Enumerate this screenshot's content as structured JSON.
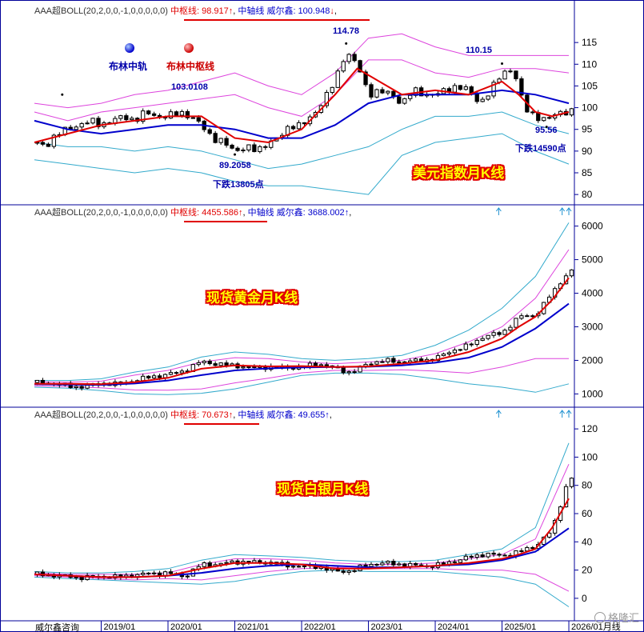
{
  "footer": {
    "source": "威尔鑫咨询"
  },
  "watermark": {
    "text": "格隆汇"
  },
  "x_axis_labels": [
    "2019/01",
    "2020/01",
    "2021/01",
    "2022/01",
    "2023/01",
    "2024/01",
    "2025/01",
    "2026/01"
  ],
  "x_axis_trailing": "月线",
  "legend": {
    "mid": "布林中轨",
    "pivot": "布林中枢线"
  },
  "colors": {
    "candle": "#000000",
    "pivot": "#e00000",
    "mid": "#0000cc",
    "outer_band": "#33aacc",
    "inner_band": "#dd44dd",
    "axis": "#000099"
  },
  "panels": [
    {
      "id": "usd",
      "title": "美元指数月K线",
      "header": {
        "indicator": "AAA超BOLL(20,2,0,0,-1,0,0,0,0,0)",
        "pivot": "中枢线: 98.917",
        "pivot_arrow": "↑",
        "mid": "中轴线 威尔鑫: 100.948",
        "mid_arrow": "↓"
      },
      "annotations": [
        {
          "text": "114.78"
        },
        {
          "text": "110.15"
        },
        {
          "text": "103.0108"
        },
        {
          "text": "89.2058"
        },
        {
          "text": "下跌13805点"
        },
        {
          "text": "95.56"
        },
        {
          "text": "下跌14590点"
        }
      ],
      "top_arrows": 0
    },
    {
      "id": "gold",
      "title": "现货黄金月K线",
      "header": {
        "indicator": "AAA超BOLL(20,2,0,0,-1,0,0,0,0,0)",
        "pivot": "中枢线: 4455.586",
        "pivot_arrow": "↑",
        "mid": "中轴线 威尔鑫: 3688.002",
        "mid_arrow": "↑"
      },
      "annotations": [],
      "top_arrows": 3
    },
    {
      "id": "silver",
      "title": "现货白银月K线",
      "header": {
        "indicator": "AAA超BOLL(20,2,0,0,-1,0,0,0,0,0)",
        "pivot": "中枢线: 70.673",
        "pivot_arrow": "↑",
        "mid": "中轴线 威尔鑫: 49.655",
        "mid_arrow": "↑"
      },
      "annotations": [],
      "top_arrows": 3
    }
  ],
  "chart_data": [
    {
      "type": "line",
      "title": "美元指数月K线",
      "x_range": [
        "2018-01",
        "2026-02"
      ],
      "ylim": [
        78,
        120
      ],
      "yticks": [
        80,
        85,
        90,
        95,
        100,
        105,
        110,
        115
      ],
      "grid": false,
      "key_points": [
        {
          "x": "2018-06",
          "y": 103.0108
        },
        {
          "x": "2021-01",
          "y": 89.2058
        },
        {
          "x": "2022-09",
          "y": 114.78
        },
        {
          "x": "2025-01",
          "y": 110.15
        },
        {
          "x": "2025-09",
          "y": 95.56
        }
      ],
      "series": [
        {
          "name": "布林中枢线",
          "x": [
            "2018-01",
            "2018-07",
            "2019-01",
            "2019-07",
            "2020-01",
            "2020-07",
            "2021-01",
            "2021-07",
            "2022-01",
            "2022-07",
            "2022-11",
            "2023-03",
            "2023-07",
            "2024-01",
            "2024-07",
            "2025-01",
            "2025-04",
            "2025-07",
            "2025-10",
            "2026-01"
          ],
          "values": [
            92,
            94,
            96,
            97,
            98,
            98,
            93,
            92,
            95,
            103,
            109,
            106,
            103,
            104,
            103,
            106,
            103,
            99,
            98,
            99
          ]
        },
        {
          "name": "布林中轨",
          "x": [
            "2018-01",
            "2018-07",
            "2019-01",
            "2019-07",
            "2020-01",
            "2020-07",
            "2021-01",
            "2021-07",
            "2022-01",
            "2022-07",
            "2023-01",
            "2023-07",
            "2024-01",
            "2024-07",
            "2025-01",
            "2025-07",
            "2026-01"
          ],
          "values": [
            97,
            95,
            94,
            95,
            96,
            96,
            95,
            93,
            93,
            96,
            101,
            103,
            103,
            103,
            104,
            103,
            101
          ]
        },
        {
          "values": [
            101,
            100,
            101,
            103,
            104,
            106,
            108,
            105,
            103,
            108,
            116,
            117,
            114,
            112,
            112,
            112,
            112
          ]
        },
        {
          "values": [
            99,
            97,
            99,
            100,
            101,
            102,
            103,
            100,
            98,
            103,
            111,
            111,
            108,
            107,
            109,
            109,
            108
          ]
        },
        {
          "values": [
            92,
            91,
            91,
            90,
            91,
            90,
            88,
            86,
            87,
            89,
            91,
            95,
            98,
            98,
            99,
            96,
            94
          ]
        },
        {
          "values": [
            88,
            87,
            86,
            85,
            86,
            85,
            83,
            82,
            82,
            81,
            80,
            89,
            92,
            93,
            94,
            90,
            87
          ]
        },
        {
          "x": [
            "2018-01",
            "2018-03",
            "2018-05",
            "2018-07",
            "2018-09",
            "2018-11",
            "2019-01",
            "2019-03",
            "2019-05",
            "2019-07",
            "2019-09",
            "2019-11",
            "2020-01",
            "2020-03",
            "2020-05",
            "2020-07",
            "2020-09",
            "2020-11",
            "2021-01",
            "2021-03",
            "2021-05",
            "2021-07",
            "2021-09",
            "2021-11",
            "2022-01",
            "2022-03",
            "2022-05",
            "2022-07",
            "2022-09",
            "2022-11",
            "2023-01",
            "2023-03",
            "2023-05",
            "2023-07",
            "2023-09",
            "2023-11",
            "2024-01",
            "2024-03",
            "2024-05",
            "2024-07",
            "2024-09",
            "2024-11",
            "2025-01",
            "2025-03",
            "2025-05",
            "2025-07",
            "2025-09",
            "2025-11",
            "2026-01"
          ],
          "values": [
            92,
            91,
            94,
            95,
            96,
            97,
            96,
            97,
            98,
            97,
            99,
            98,
            98,
            99,
            98,
            96,
            93,
            92,
            90,
            91,
            90,
            92,
            93,
            96,
            96,
            98,
            102,
            106,
            113,
            110,
            103,
            104,
            103,
            101,
            104,
            103,
            103,
            104,
            105,
            104,
            101,
            104,
            108,
            109,
            100,
            98,
            97,
            99,
            99
          ]
        }
      ]
    },
    {
      "type": "line",
      "title": "现货黄金月K线",
      "x_range": [
        "2018-01",
        "2026-02"
      ],
      "ylim": [
        700,
        6300
      ],
      "yticks": [
        1000,
        2000,
        3000,
        4000,
        5000,
        6000
      ],
      "grid": false,
      "series": [
        {
          "name": "布林中枢线",
          "x": [
            "2018-01",
            "2018-07",
            "2019-01",
            "2019-07",
            "2020-01",
            "2020-07",
            "2021-01",
            "2021-07",
            "2022-01",
            "2022-07",
            "2023-01",
            "2023-07",
            "2024-01",
            "2024-07",
            "2025-01",
            "2025-04",
            "2025-07",
            "2025-10",
            "2026-01"
          ],
          "values": [
            1300,
            1300,
            1290,
            1350,
            1480,
            1750,
            1850,
            1820,
            1830,
            1800,
            1820,
            1900,
            2000,
            2250,
            2650,
            3000,
            3300,
            3800,
            4455
          ]
        },
        {
          "name": "中轴线 威尔鑫",
          "x": [
            "2018-01",
            "2018-07",
            "2019-01",
            "2019-07",
            "2020-01",
            "2020-07",
            "2021-01",
            "2021-07",
            "2022-01",
            "2022-07",
            "2023-01",
            "2023-07",
            "2024-01",
            "2024-07",
            "2025-01",
            "2025-07",
            "2026-01"
          ],
          "values": [
            1290,
            1280,
            1270,
            1310,
            1400,
            1560,
            1700,
            1760,
            1790,
            1800,
            1810,
            1850,
            1930,
            2080,
            2400,
            2950,
            3688
          ]
        },
        {
          "values": [
            1360,
            1350,
            1380,
            1560,
            1700,
            1950,
            2080,
            2050,
            1950,
            1900,
            1950,
            2000,
            2200,
            2550,
            3000,
            3850,
            5300
          ]
        },
        {
          "values": [
            1240,
            1220,
            1180,
            1120,
            1110,
            1150,
            1330,
            1470,
            1630,
            1700,
            1700,
            1720,
            1680,
            1620,
            1800,
            2050,
            2050
          ]
        },
        {
          "values": [
            1400,
            1400,
            1450,
            1650,
            1800,
            2100,
            2250,
            2180,
            2050,
            2000,
            2050,
            2150,
            2450,
            2900,
            3550,
            4500,
            6100
          ]
        },
        {
          "values": [
            1200,
            1170,
            1100,
            1000,
            980,
            1020,
            1150,
            1350,
            1550,
            1620,
            1620,
            1580,
            1450,
            1300,
            1200,
            1050,
            1300
          ]
        },
        {
          "x": [
            "2018-01",
            "2018-04",
            "2018-07",
            "2018-10",
            "2019-01",
            "2019-04",
            "2019-07",
            "2019-10",
            "2020-01",
            "2020-04",
            "2020-07",
            "2020-10",
            "2021-01",
            "2021-04",
            "2021-07",
            "2021-10",
            "2022-01",
            "2022-04",
            "2022-07",
            "2022-10",
            "2023-01",
            "2023-04",
            "2023-07",
            "2023-10",
            "2024-01",
            "2024-04",
            "2024-07",
            "2024-10",
            "2025-01",
            "2025-04",
            "2025-07",
            "2025-10",
            "2026-01"
          ],
          "values": [
            1340,
            1320,
            1230,
            1210,
            1320,
            1290,
            1410,
            1510,
            1580,
            1690,
            1970,
            1880,
            1850,
            1770,
            1810,
            1780,
            1800,
            1910,
            1760,
            1630,
            1920,
            1990,
            1960,
            1990,
            2050,
            2290,
            2440,
            2740,
            2800,
            3300,
            3340,
            4000,
            4650
          ]
        }
      ]
    },
    {
      "type": "line",
      "title": "现货白银月K线",
      "x_range": [
        "2018-01",
        "2026-02"
      ],
      "ylim": [
        -8,
        128
      ],
      "yticks": [
        0,
        20,
        40,
        60,
        80,
        100,
        120
      ],
      "grid": false,
      "series": [
        {
          "name": "布林中枢线",
          "x": [
            "2018-01",
            "2018-07",
            "2019-01",
            "2019-07",
            "2020-01",
            "2020-07",
            "2021-01",
            "2021-07",
            "2022-01",
            "2022-07",
            "2023-01",
            "2023-07",
            "2024-01",
            "2024-07",
            "2025-01",
            "2025-04",
            "2025-07",
            "2025-10",
            "2026-01"
          ],
          "values": [
            17,
            16,
            15,
            15,
            16,
            21,
            25,
            25,
            24,
            21,
            21,
            22,
            23,
            25,
            28,
            31,
            35,
            50,
            70.673
          ]
        },
        {
          "name": "中轴线 威尔鑫",
          "x": [
            "2018-01",
            "2018-07",
            "2019-01",
            "2019-07",
            "2020-01",
            "2020-07",
            "2021-01",
            "2021-07",
            "2022-01",
            "2022-07",
            "2023-01",
            "2023-07",
            "2024-01",
            "2024-07",
            "2025-01",
            "2025-07",
            "2026-01"
          ],
          "values": [
            17,
            16,
            15,
            15,
            16,
            18,
            21,
            23,
            24,
            23,
            22,
            22,
            23,
            24,
            27,
            33,
            49.655
          ]
        },
        {
          "values": [
            18,
            17,
            17,
            17,
            18,
            24,
            28,
            28,
            27,
            25,
            24,
            24,
            25,
            28,
            31,
            42,
            95
          ]
        },
        {
          "values": [
            16,
            15,
            14,
            13,
            14,
            13,
            16,
            19,
            21,
            22,
            21,
            21,
            21,
            20,
            20,
            17,
            5
          ]
        },
        {
          "values": [
            19,
            18,
            18,
            19,
            21,
            27,
            31,
            30,
            29,
            27,
            26,
            26,
            27,
            31,
            35,
            50,
            110
          ]
        },
        {
          "values": [
            15,
            14,
            13,
            12,
            11,
            10,
            12,
            16,
            19,
            20,
            19,
            19,
            19,
            17,
            15,
            10,
            -6
          ]
        },
        {
          "x": [
            "2018-01",
            "2018-04",
            "2018-07",
            "2018-10",
            "2019-01",
            "2019-04",
            "2019-07",
            "2019-10",
            "2020-01",
            "2020-04",
            "2020-07",
            "2020-10",
            "2021-01",
            "2021-04",
            "2021-07",
            "2021-10",
            "2022-01",
            "2022-04",
            "2022-07",
            "2022-10",
            "2023-01",
            "2023-04",
            "2023-07",
            "2023-10",
            "2024-01",
            "2024-04",
            "2024-07",
            "2024-10",
            "2025-01",
            "2025-04",
            "2025-07",
            "2025-10",
            "2026-01"
          ],
          "values": [
            17,
            16.5,
            15.5,
            14.5,
            15.6,
            15,
            16.5,
            17.5,
            17.9,
            15.5,
            24,
            24,
            26,
            25.5,
            25.5,
            23.5,
            22.5,
            22.5,
            19,
            19.5,
            24,
            25,
            24,
            23,
            23,
            26,
            29,
            31.5,
            30,
            33,
            37,
            48,
            85
          ]
        }
      ]
    }
  ]
}
